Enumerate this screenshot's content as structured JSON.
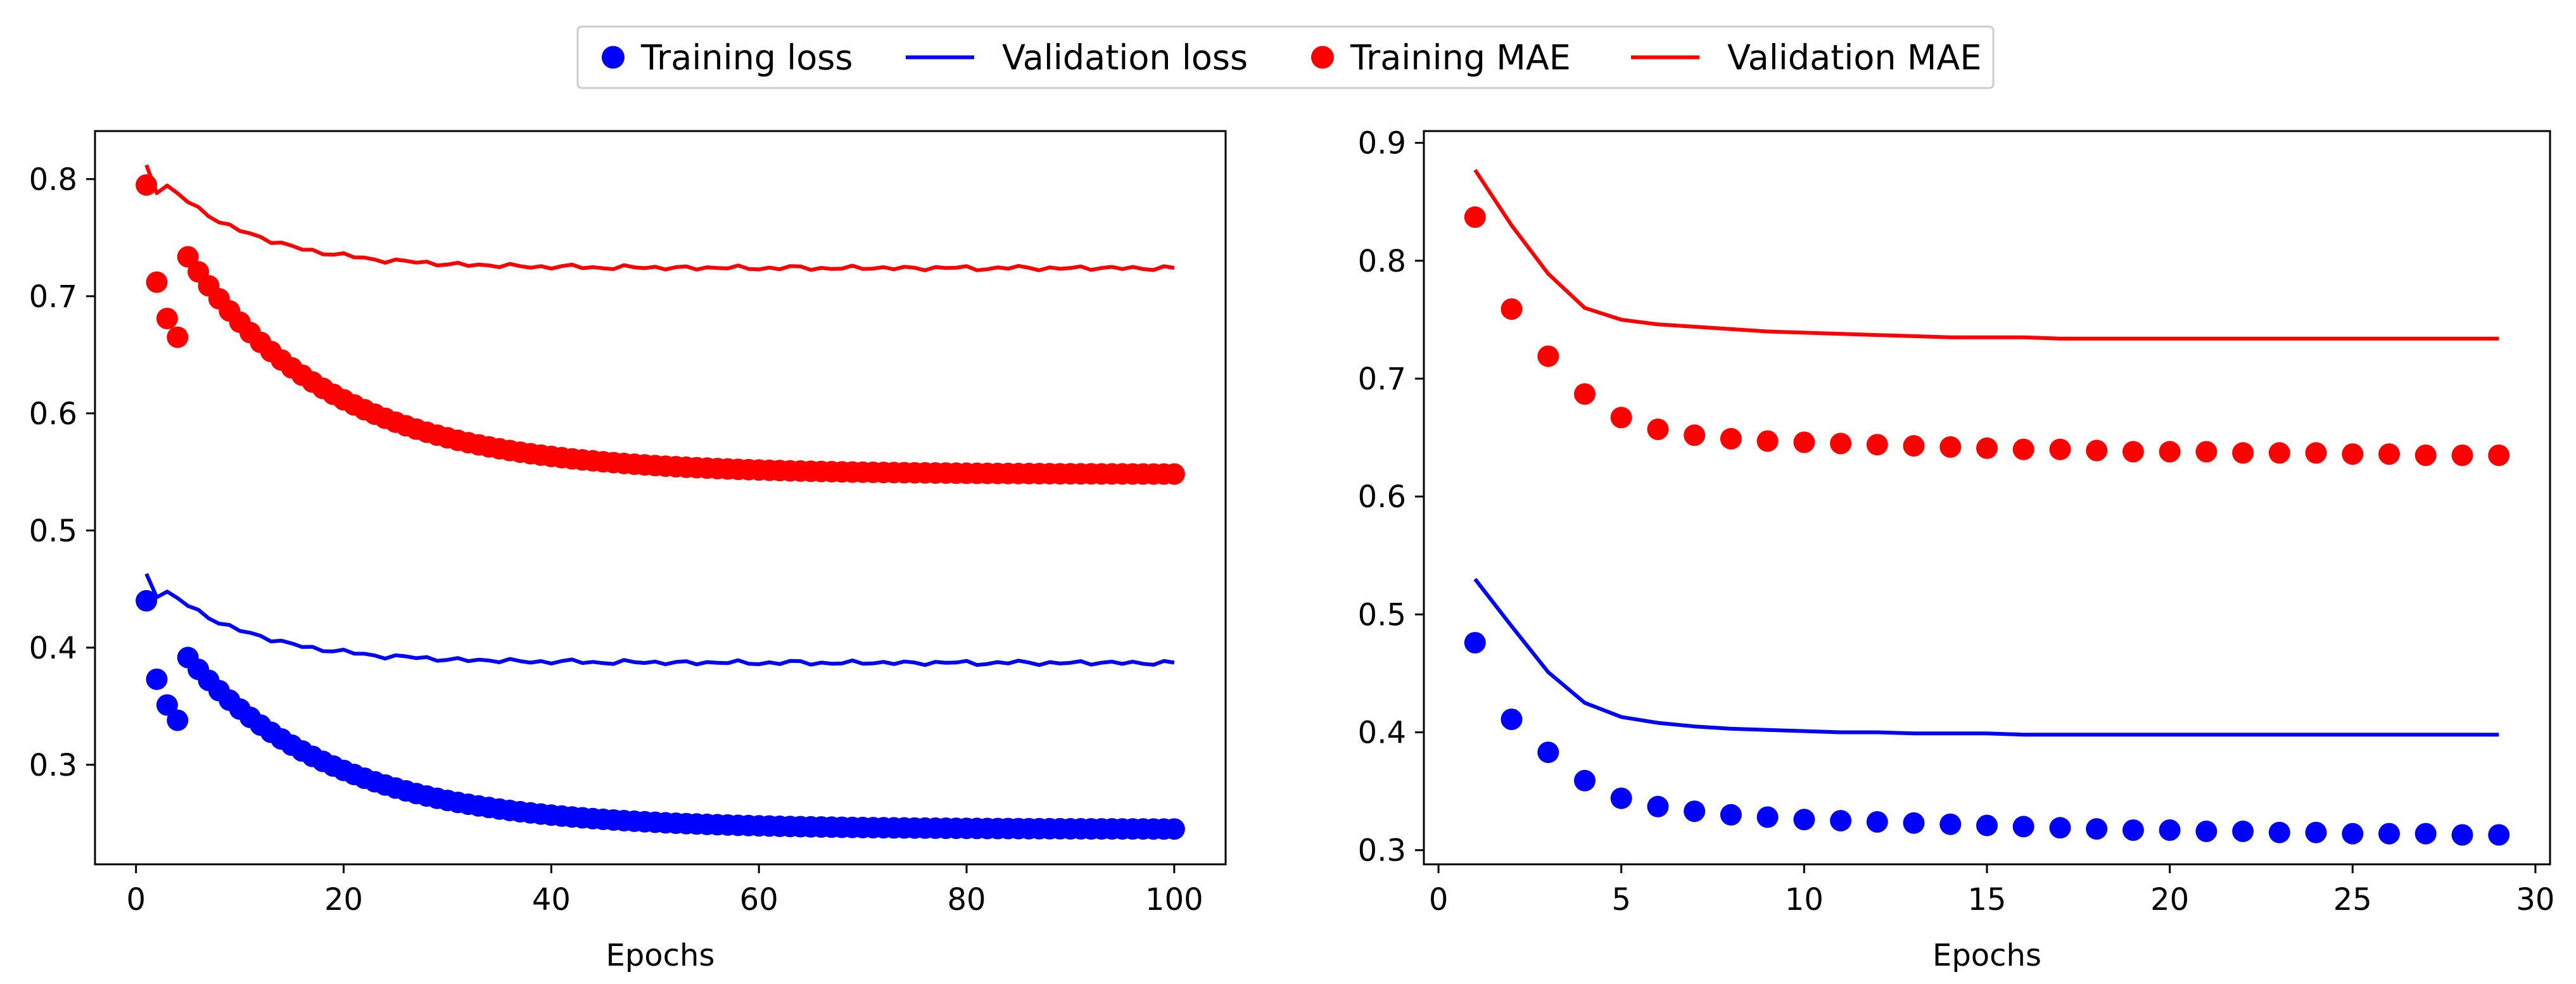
{
  "legend": {
    "items": [
      {
        "label": "Training loss",
        "marker": "dot",
        "color": "#0000ff"
      },
      {
        "label": "Validation loss",
        "marker": "line",
        "color": "#0000ff"
      },
      {
        "label": "Training MAE",
        "marker": "dot",
        "color": "#ff0000"
      },
      {
        "label": "Validation MAE",
        "marker": "line",
        "color": "#ff0000"
      }
    ],
    "placement": "top-center"
  },
  "chart_data": [
    {
      "type": "line",
      "title": "",
      "xlabel": "Epochs",
      "ylabel": "",
      "xlim": [
        -3.95,
        104.95
      ],
      "ylim": [
        0.215,
        0.841
      ],
      "xticks": [
        0,
        20,
        40,
        60,
        80,
        100
      ],
      "yticks": [
        0.3,
        0.4,
        0.5,
        0.6,
        0.7,
        0.8
      ],
      "epochs": {
        "start": 1,
        "end": 100
      },
      "series": [
        {
          "name": "Training loss",
          "style": "markers",
          "color": "#0000ff",
          "start": 0.44,
          "end": 0.245,
          "tau": 14,
          "kinks": [
            [
              2,
              0.373
            ],
            [
              3,
              0.351
            ],
            [
              4,
              0.338
            ]
          ]
        },
        {
          "name": "Validation loss",
          "style": "line",
          "color": "#0000ff",
          "start": 0.463,
          "end": 0.387,
          "tau": 9,
          "kinks": [
            [
              2,
              0.443
            ]
          ],
          "noise": 0.0025
        },
        {
          "name": "Training MAE",
          "style": "markers",
          "color": "#ff0000",
          "start": 0.795,
          "end": 0.548,
          "tau": 14,
          "kinks": [
            [
              2,
              0.712
            ],
            [
              3,
              0.681
            ],
            [
              4,
              0.665
            ]
          ]
        },
        {
          "name": "Validation MAE",
          "style": "line",
          "color": "#ff0000",
          "start": 0.812,
          "end": 0.724,
          "tau": 9,
          "kinks": [
            [
              2,
              0.788
            ]
          ],
          "noise": 0.0025
        }
      ]
    },
    {
      "type": "line",
      "title": "",
      "xlabel": "Epochs",
      "ylabel": "",
      "xlim": [
        -0.4,
        30.4
      ],
      "ylim": [
        0.288,
        0.91
      ],
      "xticks": [
        0,
        5,
        10,
        15,
        20,
        25,
        30
      ],
      "yticks": [
        0.3,
        0.4,
        0.5,
        0.6,
        0.7,
        0.8,
        0.9
      ],
      "x": [
        1,
        2,
        3,
        4,
        5,
        6,
        7,
        8,
        9,
        10,
        11,
        12,
        13,
        14,
        15,
        16,
        17,
        18,
        19,
        20,
        21,
        22,
        23,
        24,
        25,
        26,
        27,
        28,
        29
      ],
      "series": [
        {
          "name": "Training loss",
          "style": "markers",
          "color": "#0000ff",
          "values": [
            0.476,
            0.411,
            0.383,
            0.359,
            0.344,
            0.337,
            0.333,
            0.33,
            0.328,
            0.326,
            0.325,
            0.324,
            0.323,
            0.322,
            0.321,
            0.32,
            0.319,
            0.318,
            0.317,
            0.317,
            0.316,
            0.316,
            0.315,
            0.315,
            0.314,
            0.314,
            0.314,
            0.313,
            0.313
          ]
        },
        {
          "name": "Validation loss",
          "style": "line",
          "color": "#0000ff",
          "values": [
            0.53,
            0.49,
            0.451,
            0.425,
            0.413,
            0.408,
            0.405,
            0.403,
            0.402,
            0.401,
            0.4,
            0.4,
            0.399,
            0.399,
            0.399,
            0.398,
            0.398,
            0.398,
            0.398,
            0.398,
            0.398,
            0.398,
            0.398,
            0.398,
            0.398,
            0.398,
            0.398,
            0.398,
            0.398
          ]
        },
        {
          "name": "Training MAE",
          "style": "markers",
          "color": "#ff0000",
          "values": [
            0.837,
            0.759,
            0.719,
            0.687,
            0.667,
            0.657,
            0.652,
            0.649,
            0.647,
            0.646,
            0.645,
            0.644,
            0.643,
            0.642,
            0.641,
            0.64,
            0.64,
            0.639,
            0.638,
            0.638,
            0.638,
            0.637,
            0.637,
            0.637,
            0.636,
            0.636,
            0.635,
            0.635,
            0.635
          ]
        },
        {
          "name": "Validation MAE",
          "style": "line",
          "color": "#ff0000",
          "values": [
            0.877,
            0.83,
            0.789,
            0.76,
            0.75,
            0.746,
            0.744,
            0.742,
            0.74,
            0.739,
            0.738,
            0.737,
            0.736,
            0.735,
            0.735,
            0.735,
            0.734,
            0.734,
            0.734,
            0.734,
            0.734,
            0.734,
            0.734,
            0.734,
            0.734,
            0.734,
            0.734,
            0.734,
            0.734
          ]
        }
      ]
    }
  ]
}
